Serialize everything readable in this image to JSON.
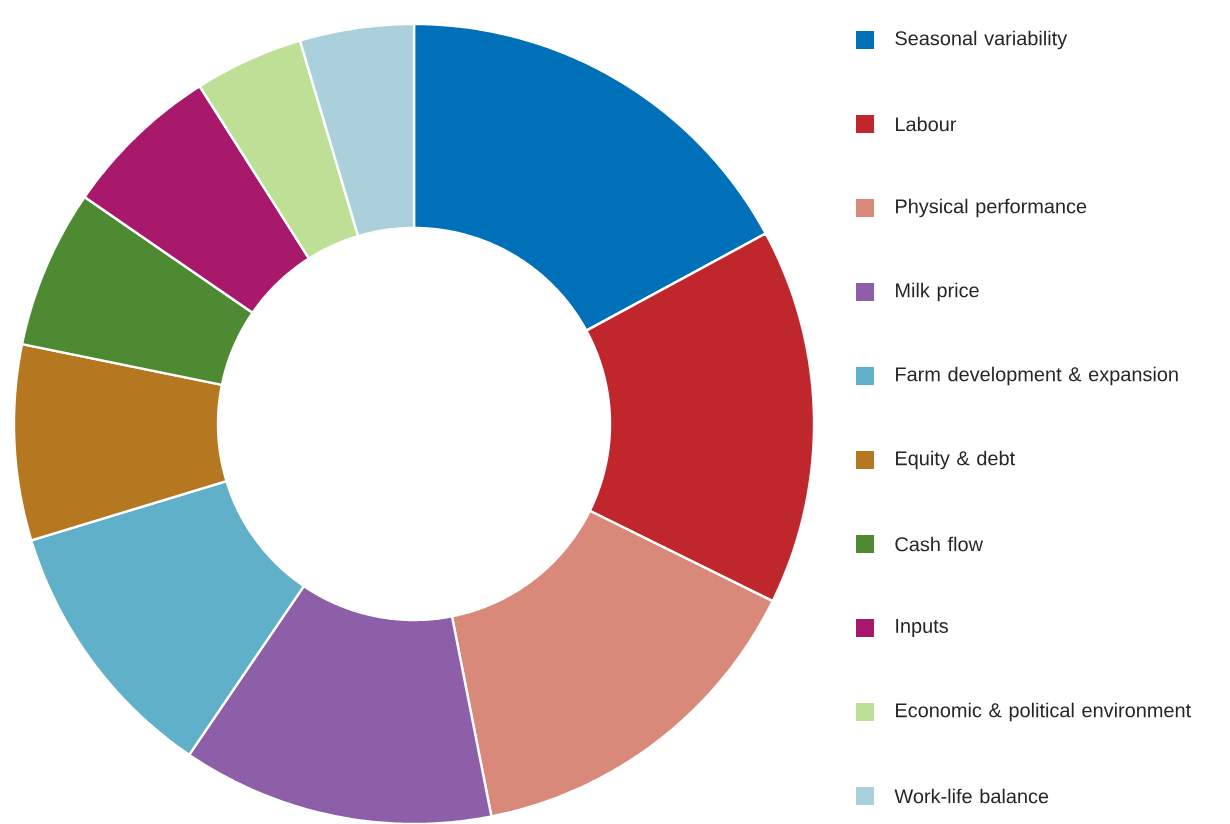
{
  "chart_data": {
    "type": "donut",
    "categories": [
      "Seasonal variability",
      "Labour",
      "Physical performance",
      "Milk price",
      "Farm development & expansion",
      "Equity & debt",
      "Cash flow",
      "Inputs",
      "Economic & political environment",
      "Work-life balance"
    ],
    "values": [
      17.1,
      15.2,
      14.6,
      12.6,
      10.8,
      7.9,
      6.4,
      6.4,
      4.4,
      4.6
    ],
    "colors": [
      "#0070b8",
      "#c0272d",
      "#d9897a",
      "#8c5fa8",
      "#5fb0c8",
      "#b57820",
      "#4d8a32",
      "#a8186b",
      "#bedf96",
      "#aad0dc"
    ],
    "legend": "right"
  }
}
